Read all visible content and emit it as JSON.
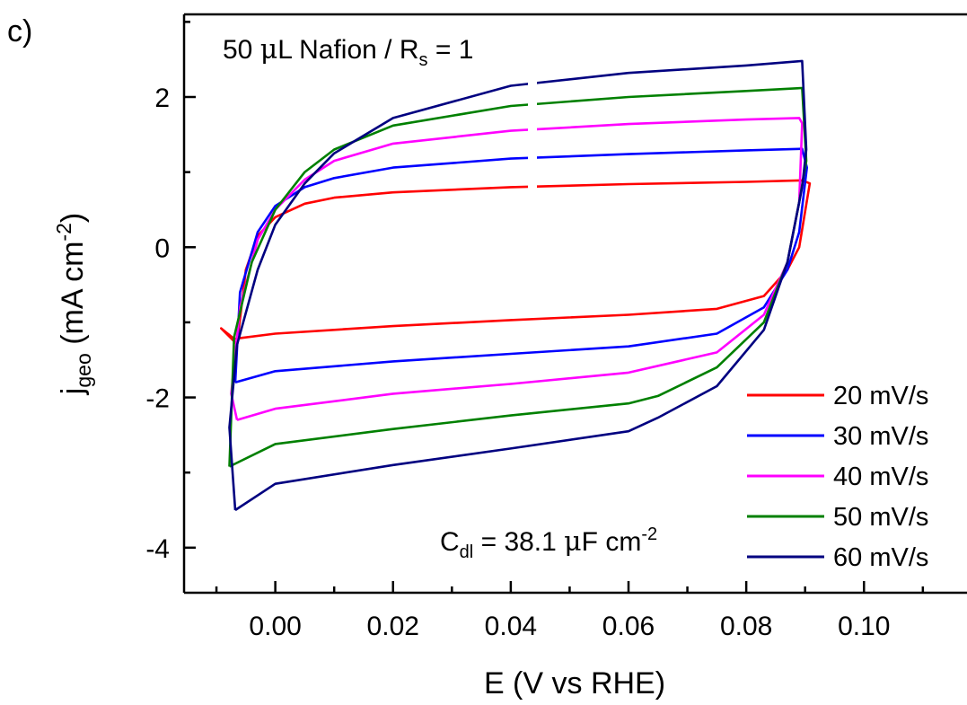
{
  "chart_data": {
    "type": "line",
    "panel_label": "c)",
    "title_annotation": {
      "prefix": "50 ",
      "mu": "μ",
      "mid": "L Nafion / R",
      "sub": "s",
      "suffix": " = 1"
    },
    "cdl_annotation": {
      "prefix": "C",
      "sub": "dl",
      "mid": " = 38.1 ",
      "mu": "μ",
      "unit": "F cm",
      "sup": "-2"
    },
    "xlabel": "E (V vs RHE)",
    "ylabel": {
      "prefix": "j",
      "sub": "geo",
      "mid": " (mA cm",
      "sup": "-2",
      "suffix": ")"
    },
    "xlim": [
      -0.0155,
      0.1175
    ],
    "ylim": [
      -4.6,
      3.1
    ],
    "x_ticks": [
      0.0,
      0.02,
      0.04,
      0.06,
      0.08,
      0.1
    ],
    "x_tick_labels": [
      "0.00",
      "0.02",
      "0.04",
      "0.06",
      "0.08",
      "0.10"
    ],
    "y_ticks": [
      2,
      0,
      -2,
      -4
    ],
    "y_tick_labels": [
      "2",
      "0",
      "-2",
      "-4"
    ],
    "grid": false,
    "legend_position": "bottom-right",
    "series": [
      {
        "name": "20 mV/s",
        "color": "#ff0000",
        "upper_x": [
          -0.0065,
          -0.005,
          -0.003,
          0.0,
          0.005,
          0.01,
          0.02,
          0.04,
          0.06,
          0.08,
          0.0895,
          0.0908
        ],
        "upper_y": [
          -1.29,
          -0.3,
          0.15,
          0.4,
          0.58,
          0.66,
          0.73,
          0.8,
          0.84,
          0.87,
          0.89,
          0.85
        ],
        "lower_x": [
          0.0908,
          0.089,
          0.087,
          0.083,
          0.075,
          0.06,
          0.04,
          0.02,
          0.0,
          -0.007,
          -0.0092,
          -0.0065
        ],
        "lower_y": [
          0.85,
          0.0,
          -0.3,
          -0.65,
          -0.82,
          -0.9,
          -0.97,
          -1.05,
          -1.15,
          -1.22,
          -1.08,
          -1.29
        ]
      },
      {
        "name": "30 mV/s",
        "color": "#0000ff",
        "upper_x": [
          -0.0068,
          -0.006,
          -0.003,
          0.0,
          0.005,
          0.01,
          0.02,
          0.04,
          0.06,
          0.08,
          0.0895,
          0.0903
        ],
        "upper_y": [
          -1.8,
          -0.6,
          0.2,
          0.55,
          0.8,
          0.92,
          1.06,
          1.18,
          1.24,
          1.29,
          1.31,
          1.06
        ],
        "lower_x": [
          0.0903,
          0.089,
          0.087,
          0.083,
          0.075,
          0.06,
          0.04,
          0.02,
          0.0,
          -0.0068
        ],
        "lower_y": [
          1.06,
          0.2,
          -0.3,
          -0.8,
          -1.15,
          -1.32,
          -1.42,
          -1.52,
          -1.65,
          -1.8
        ]
      },
      {
        "name": "40 mV/s",
        "color": "#ff00ff",
        "upper_x": [
          -0.0065,
          -0.0075,
          -0.006,
          -0.003,
          0.0,
          0.005,
          0.01,
          0.02,
          0.04,
          0.06,
          0.08,
          0.089,
          0.0895
        ],
        "upper_y": [
          -2.3,
          -1.95,
          -0.8,
          0.1,
          0.5,
          0.9,
          1.15,
          1.38,
          1.55,
          1.64,
          1.7,
          1.72,
          1.65
        ],
        "lower_x": [
          0.0895,
          0.089,
          0.087,
          0.083,
          0.075,
          0.06,
          0.04,
          0.02,
          0.0,
          -0.0065
        ],
        "lower_y": [
          1.65,
          0.6,
          -0.2,
          -0.9,
          -1.4,
          -1.67,
          -1.82,
          -1.95,
          -2.15,
          -2.3
        ]
      },
      {
        "name": "50 mV/s",
        "color": "#008000",
        "upper_x": [
          -0.0078,
          -0.007,
          -0.004,
          0.0,
          0.005,
          0.01,
          0.02,
          0.04,
          0.06,
          0.08,
          0.0895,
          0.0902
        ],
        "upper_y": [
          -2.92,
          -1.2,
          -0.2,
          0.5,
          1.0,
          1.3,
          1.62,
          1.88,
          2.0,
          2.08,
          2.12,
          1.15
        ],
        "lower_x": [
          0.0902,
          0.089,
          0.087,
          0.083,
          0.075,
          0.065,
          0.06,
          0.04,
          0.02,
          0.0,
          -0.0078
        ],
        "lower_y": [
          1.15,
          0.6,
          -0.2,
          -1.0,
          -1.6,
          -1.98,
          -2.08,
          -2.24,
          -2.42,
          -2.62,
          -2.92
        ]
      },
      {
        "name": "60 mV/s",
        "color": "#000080",
        "upper_x": [
          -0.0068,
          -0.0078,
          -0.0065,
          -0.003,
          0.0,
          0.005,
          0.01,
          0.02,
          0.04,
          0.06,
          0.08,
          0.0895,
          0.0902
        ],
        "upper_y": [
          -3.5,
          -2.4,
          -1.3,
          -0.3,
          0.3,
          0.85,
          1.25,
          1.72,
          2.15,
          2.32,
          2.42,
          2.48,
          1.3
        ],
        "lower_x": [
          0.0902,
          0.0895,
          0.087,
          0.083,
          0.075,
          0.065,
          0.06,
          0.04,
          0.02,
          0.0,
          -0.0068
        ],
        "lower_y": [
          1.3,
          0.8,
          -0.2,
          -1.1,
          -1.85,
          -2.27,
          -2.45,
          -2.68,
          -2.9,
          -3.15,
          -3.5
        ]
      }
    ]
  }
}
